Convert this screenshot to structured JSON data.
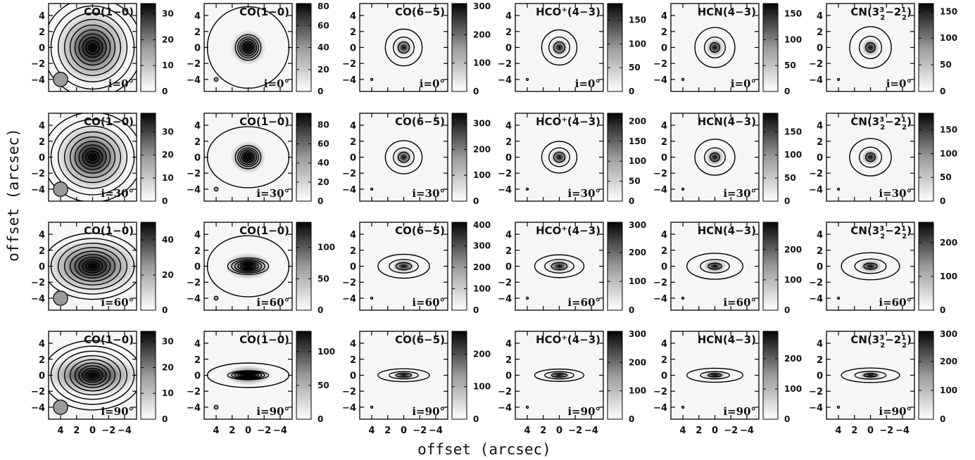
{
  "chart_data": {
    "type": "heatmap",
    "xlabel": "offset (arcsec)",
    "ylabel": "offset (arcsec)",
    "xlim": [
      5.5,
      -5.5
    ],
    "ylim": [
      -5.5,
      5.5
    ],
    "xticks": [
      4,
      2,
      0,
      -2,
      -4
    ],
    "yticks": [
      -4,
      -2,
      0,
      2,
      4
    ],
    "colormap": "greyscale (white=0, black=max)",
    "contours": true,
    "rows": [
      {
        "inclination_label": "i=0°",
        "panels": [
          {
            "title": "CO(1−0)",
            "title_sup": "",
            "title_rest": "",
            "beam_radius": 0.9,
            "cbar_ticks": [
              0,
              10,
              20,
              30
            ],
            "cbar_max": 34
          },
          {
            "title": "CO(1−0)",
            "title_sup": "",
            "title_rest": "",
            "beam_radius": 0.25,
            "cbar_ticks": [
              0,
              20,
              40,
              60,
              80
            ],
            "cbar_max": 80
          },
          {
            "title": "CO(6−5)",
            "title_sup": "",
            "title_rest": "",
            "beam_radius": 0.1,
            "cbar_ticks": [
              0,
              100,
              200,
              300
            ],
            "cbar_max": 310
          },
          {
            "title": "HCO",
            "title_sup": "+",
            "title_rest": "(4−3)",
            "beam_radius": 0.1,
            "cbar_ticks": [
              0,
              50,
              100,
              150
            ],
            "cbar_max": 185
          },
          {
            "title": "HCN(4−3)",
            "title_sup": "",
            "title_rest": "",
            "beam_radius": 0.1,
            "cbar_ticks": [
              0,
              50,
              100,
              150
            ],
            "cbar_max": 170
          },
          {
            "title": "CN(3",
            "title_sup": "3",
            "title_rest": "−2",
            "title_sub": "2",
            "title_sup2": "1",
            "title_sub2": "2",
            "title_end": ")",
            "beam_radius": 0.1,
            "cbar_ticks": [
              0,
              50,
              100,
              150
            ],
            "cbar_max": 165
          }
        ]
      },
      {
        "inclination_label": "i=30°",
        "panels": [
          {
            "title": "CO(1−0)",
            "title_sup": "",
            "title_rest": "",
            "beam_radius": 0.9,
            "cbar_ticks": [
              0,
              10,
              20,
              30
            ],
            "cbar_max": 38
          },
          {
            "title": "CO(1−0)",
            "title_sup": "",
            "title_rest": "",
            "beam_radius": 0.25,
            "cbar_ticks": [
              0,
              20,
              40,
              60,
              80
            ],
            "cbar_max": 92
          },
          {
            "title": "CO(6−5)",
            "title_sup": "",
            "title_rest": "",
            "beam_radius": 0.1,
            "cbar_ticks": [
              0,
              100,
              200,
              300
            ],
            "cbar_max": 340
          },
          {
            "title": "HCO",
            "title_sup": "+",
            "title_rest": "(4−3)",
            "beam_radius": 0.1,
            "cbar_ticks": [
              0,
              50,
              100,
              150,
              200
            ],
            "cbar_max": 220
          },
          {
            "title": "HCN(4−3)",
            "title_sup": "",
            "title_rest": "",
            "beam_radius": 0.1,
            "cbar_ticks": [
              0,
              50,
              100,
              150
            ],
            "cbar_max": 190
          },
          {
            "title": "CN(3",
            "title_sup": "3",
            "title_rest": "−2",
            "title_sub": "2",
            "title_sup2": "1",
            "title_sub2": "2",
            "title_end": ")",
            "beam_radius": 0.1,
            "cbar_ticks": [
              0,
              50,
              100,
              150
            ],
            "cbar_max": 185
          }
        ]
      },
      {
        "inclination_label": "i=60°",
        "panels": [
          {
            "title": "CO(1−0)",
            "title_sup": "",
            "title_rest": "",
            "beam_radius": 0.9,
            "cbar_ticks": [
              0,
              20,
              40
            ],
            "cbar_max": 50
          },
          {
            "title": "CO(1−0)",
            "title_sup": "",
            "title_rest": "",
            "beam_radius": 0.25,
            "cbar_ticks": [
              0,
              50,
              100
            ],
            "cbar_max": 140
          },
          {
            "title": "CO(6−5)",
            "title_sup": "",
            "title_rest": "",
            "beam_radius": 0.1,
            "cbar_ticks": [
              0,
              100,
              200,
              300,
              400
            ],
            "cbar_max": 410
          },
          {
            "title": "HCO",
            "title_sup": "+",
            "title_rest": "(4−3)",
            "beam_radius": 0.1,
            "cbar_ticks": [
              0,
              100,
              200,
              300
            ],
            "cbar_max": 305
          },
          {
            "title": "HCN(4−3)",
            "title_sup": "",
            "title_rest": "",
            "beam_radius": 0.1,
            "cbar_ticks": [
              0,
              100,
              200
            ],
            "cbar_max": 290
          },
          {
            "title": "CN(3",
            "title_sup": "3",
            "title_rest": "−2",
            "title_sub": "2",
            "title_sup2": "1",
            "title_sub2": "2",
            "title_end": ")",
            "beam_radius": 0.1,
            "cbar_ticks": [
              0,
              100,
              200
            ],
            "cbar_max": 260
          }
        ]
      },
      {
        "inclination_label": "i=90°",
        "panels": [
          {
            "title": "CO(1−0)",
            "title_sup": "",
            "title_rest": "",
            "beam_radius": 0.9,
            "cbar_ticks": [
              0,
              10,
              20,
              30
            ],
            "cbar_max": 34
          },
          {
            "title": "CO(1−0)",
            "title_sup": "",
            "title_rest": "",
            "beam_radius": 0.25,
            "cbar_ticks": [
              0,
              50,
              100
            ],
            "cbar_max": 130
          },
          {
            "title": "CO(6−5)",
            "title_sup": "",
            "title_rest": "",
            "beam_radius": 0.1,
            "cbar_ticks": [
              0,
              100,
              200
            ],
            "cbar_max": 270
          },
          {
            "title": "HCO",
            "title_sup": "+",
            "title_rest": "(4−3)",
            "beam_radius": 0.1,
            "cbar_ticks": [
              0,
              100,
              200,
              300
            ],
            "cbar_max": 310
          },
          {
            "title": "HCN(4−3)",
            "title_sup": "",
            "title_rest": "",
            "beam_radius": 0.1,
            "cbar_ticks": [
              0,
              100,
              200
            ],
            "cbar_max": 290
          },
          {
            "title": "CN(3",
            "title_sup": "3",
            "title_rest": "−2",
            "title_sub": "2",
            "title_sup2": "1",
            "title_sub2": "2",
            "title_end": ")",
            "beam_radius": 0.1,
            "cbar_ticks": [
              0,
              100,
              200,
              300
            ],
            "cbar_max": 305
          }
        ]
      }
    ]
  }
}
